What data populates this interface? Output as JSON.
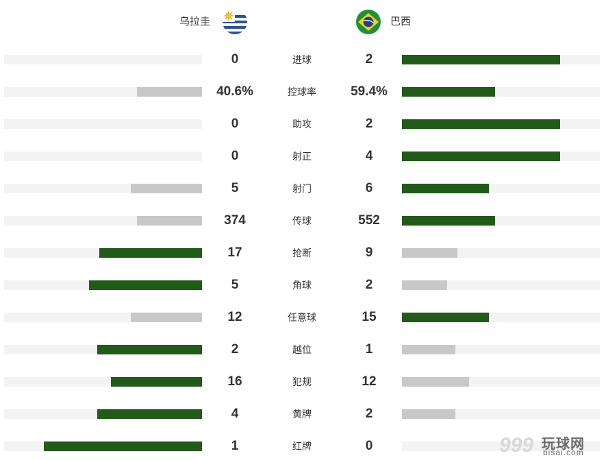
{
  "teams": {
    "home": {
      "name": "乌拉圭",
      "flag": "uruguay-flag-icon"
    },
    "away": {
      "name": "巴西",
      "flag": "brazil-flag-icon"
    }
  },
  "colors": {
    "leading": "#225a1a",
    "trailing": "#c8c8c8",
    "track": "#f3f3f3"
  },
  "stats": [
    {
      "label": "进球",
      "home": "0",
      "away": "2",
      "home_fill": 0.0,
      "away_fill": 0.8,
      "leader": "away"
    },
    {
      "label": "控球率",
      "home": "40.6%",
      "away": "59.4%",
      "home_fill": 0.33,
      "away_fill": 0.47,
      "leader": "away"
    },
    {
      "label": "助攻",
      "home": "0",
      "away": "2",
      "home_fill": 0.0,
      "away_fill": 0.8,
      "leader": "away"
    },
    {
      "label": "射正",
      "home": "0",
      "away": "4",
      "home_fill": 0.0,
      "away_fill": 0.8,
      "leader": "away"
    },
    {
      "label": "射门",
      "home": "5",
      "away": "6",
      "home_fill": 0.36,
      "away_fill": 0.44,
      "leader": "away"
    },
    {
      "label": "传球",
      "home": "374",
      "away": "552",
      "home_fill": 0.33,
      "away_fill": 0.47,
      "leader": "away"
    },
    {
      "label": "抢断",
      "home": "17",
      "away": "9",
      "home_fill": 0.52,
      "away_fill": 0.28,
      "leader": "home"
    },
    {
      "label": "角球",
      "home": "5",
      "away": "2",
      "home_fill": 0.57,
      "away_fill": 0.23,
      "leader": "home"
    },
    {
      "label": "任意球",
      "home": "12",
      "away": "15",
      "home_fill": 0.36,
      "away_fill": 0.44,
      "leader": "away"
    },
    {
      "label": "越位",
      "home": "2",
      "away": "1",
      "home_fill": 0.53,
      "away_fill": 0.27,
      "leader": "home"
    },
    {
      "label": "犯规",
      "home": "16",
      "away": "12",
      "home_fill": 0.46,
      "away_fill": 0.34,
      "leader": "home"
    },
    {
      "label": "黄牌",
      "home": "4",
      "away": "2",
      "home_fill": 0.53,
      "away_fill": 0.27,
      "leader": "home"
    },
    {
      "label": "红牌",
      "home": "1",
      "away": "0",
      "home_fill": 0.8,
      "away_fill": 0.0,
      "leader": "home"
    }
  ],
  "watermark": {
    "digits": "999",
    "cn": "玩球网",
    "en": "bisai.com"
  }
}
